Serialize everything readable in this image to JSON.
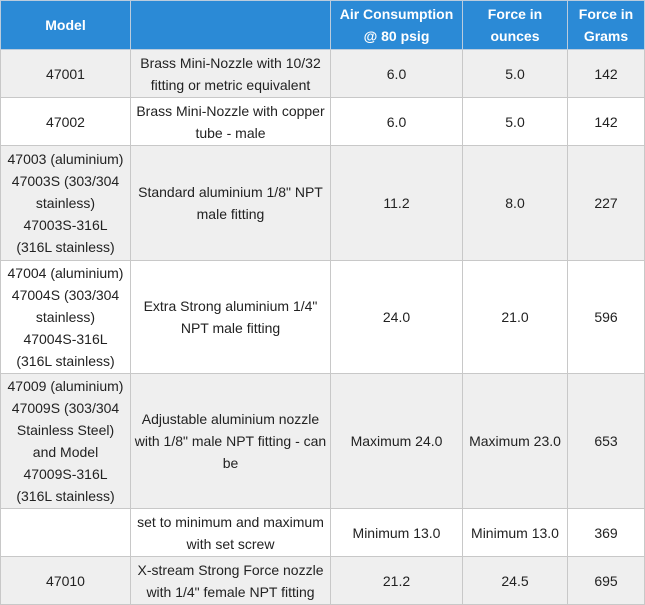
{
  "table": {
    "header": {
      "model": "Model",
      "air": "Air Consumption @ 80 psig",
      "ounces": "Force in ounces",
      "grams": "Force in Grams"
    },
    "rows": [
      {
        "model": [
          "47001"
        ],
        "description": "Brass Mini-Nozzle with 10/32 fitting or metric equivalent",
        "air": "6.0",
        "ounces": "5.0",
        "grams": 142
      },
      {
        "model": [
          "47002"
        ],
        "description": "Brass Mini-Nozzle with copper tube - male",
        "air": "6.0",
        "ounces": "5.0",
        "grams": 142
      },
      {
        "model": [
          "47003 (aluminium)",
          "47003S (303/304 stainless)",
          "47003S-316L (316L stainless)"
        ],
        "description": "Standard aluminium 1/8\" NPT male fitting",
        "air": "11.2",
        "ounces": "8.0",
        "grams": 227
      },
      {
        "model": [
          "47004 (aluminium)",
          "47004S (303/304 stainless)",
          "47004S-316L (316L stainless)"
        ],
        "description": "Extra Strong aluminium 1/4\" NPT male fitting",
        "air": "24.0",
        "ounces": "21.0",
        "grams": 596
      },
      {
        "model": [
          "47009 (aluminium)",
          "47009S (303/304 Stainless Steel)",
          "and Model",
          "47009S-316L (316L stainless)"
        ],
        "description": "Adjustable aluminium nozzle with 1/8\" male NPT fitting - can be",
        "air": "Maximum 24.0",
        "ounces": "Maximum 23.0",
        "grams": 653
      },
      {
        "model": [],
        "description": "set to minimum and maximum with set screw",
        "air": "Minimum 13.0",
        "ounces": "Minimum 13.0",
        "grams": 369
      },
      {
        "model": [
          "47010"
        ],
        "description": "X-stream Strong Force nozzle with 1/4\" female NPT fitting",
        "air": "21.2",
        "ounces": "24.5",
        "grams": 695
      }
    ]
  }
}
